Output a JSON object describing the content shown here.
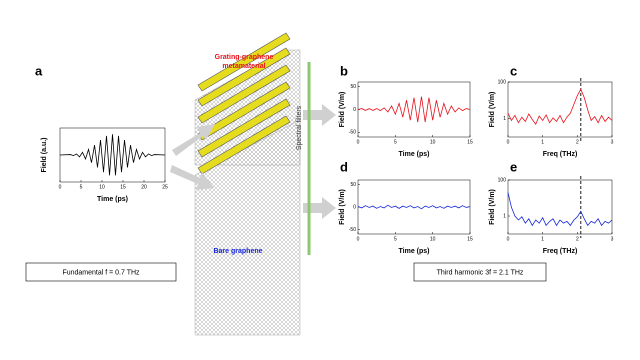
{
  "labels": {
    "grating": [
      "Grating-graphene",
      "metamaterial"
    ],
    "bare": "Bare graphene",
    "filters": "Spectral filters",
    "fundamental": "Fundamental f = 0.7 THz",
    "harmonic": "Third harmonic 3f = 2.1 THz"
  },
  "chart_data": [
    {
      "type": "line",
      "panel": "a",
      "xlabel": "Time (ps)",
      "ylabel": "Field (a.u.)",
      "color": "#000000",
      "x": [
        0,
        2.5,
        3.22,
        3.93,
        4.65,
        5.36,
        6.07,
        6.79,
        7.5,
        8.22,
        8.93,
        9.64,
        10.36,
        11.07,
        11.79,
        12.5,
        13.21,
        13.93,
        14.64,
        15.36,
        16.07,
        16.79,
        17.5,
        18.21,
        18.93,
        19.64,
        20.36,
        21.07,
        21.79,
        22.5,
        25
      ],
      "values": [
        0,
        0.02,
        -0.03,
        0.05,
        -0.09,
        0.13,
        -0.19,
        0.27,
        -0.37,
        0.48,
        -0.6,
        0.72,
        -0.83,
        0.92,
        -0.98,
        1,
        -0.98,
        0.92,
        -0.83,
        0.72,
        -0.6,
        0.48,
        -0.37,
        0.27,
        -0.19,
        0.13,
        -0.09,
        0.05,
        -0.03,
        0.02,
        0
      ],
      "xlim": [
        0,
        25
      ],
      "ylim": [
        -1.3,
        1.3
      ],
      "xticks": [
        0,
        5,
        10,
        15,
        20,
        25
      ],
      "yticks": []
    },
    {
      "type": "line",
      "panel": "b",
      "xlabel": "Time (ps)",
      "ylabel": "Field (V/m)",
      "color": "#e8101a",
      "x": [
        0,
        0.5,
        1,
        1.5,
        2,
        2.5,
        3,
        3.5,
        4,
        4.5,
        5,
        5.5,
        6,
        6.5,
        7,
        7.5,
        8,
        8.5,
        9,
        9.5,
        10,
        10.5,
        11,
        11.5,
        12,
        12.5,
        13,
        13.5,
        14,
        14.5,
        15
      ],
      "values": [
        0,
        2,
        -2,
        2,
        -2,
        2,
        -2.4,
        3.6,
        -5.4,
        7.6,
        -10.3,
        13.4,
        -16.8,
        20.2,
        -23.3,
        25.8,
        -27.4,
        28,
        -27.4,
        25.8,
        -23.3,
        20.2,
        -16.8,
        13.4,
        -10.3,
        7.6,
        -5.4,
        3.6,
        -2.4,
        2,
        0
      ],
      "xlim": [
        0,
        15
      ],
      "ylim": [
        -60,
        60
      ],
      "xticks": [
        0,
        5,
        10,
        15
      ],
      "yticks": [
        50,
        0,
        -50
      ]
    },
    {
      "type": "line",
      "panel": "c",
      "xlabel": "Freq (THz)",
      "ylabel": "Field (V/m)",
      "color": "#e8101a",
      "yscale": "log",
      "vline": 2.1,
      "x": [
        0,
        0.1,
        0.2,
        0.3,
        0.4,
        0.5,
        0.6,
        0.7,
        0.8,
        0.9,
        1,
        1.1,
        1.2,
        1.3,
        1.4,
        1.5,
        1.6,
        1.7,
        1.8,
        1.9,
        2,
        2.1,
        2.2,
        2.3,
        2.4,
        2.5,
        2.6,
        2.7,
        2.8,
        2.9,
        3
      ],
      "values": [
        2,
        0.8,
        1.5,
        0.6,
        1.2,
        0.7,
        1.8,
        0.9,
        0.5,
        1.4,
        0.8,
        1.6,
        0.6,
        1.1,
        0.7,
        1.5,
        0.6,
        1.2,
        2,
        6,
        18,
        40,
        14,
        3,
        0.8,
        1.3,
        0.6,
        1.5,
        0.7,
        1.2,
        0.8
      ],
      "xlim": [
        0,
        3
      ],
      "ylim": [
        0.1,
        100
      ],
      "xticks": [
        0,
        1,
        2,
        3
      ],
      "yticks": [
        100,
        1
      ]
    },
    {
      "type": "line",
      "panel": "d",
      "xlabel": "Time (ps)",
      "ylabel": "Field (V/m)",
      "color": "#1426d8",
      "x": [
        0,
        0.5,
        1,
        1.5,
        2,
        2.5,
        3,
        3.5,
        4,
        4.5,
        5,
        5.5,
        6,
        6.5,
        7,
        7.5,
        8,
        8.5,
        9,
        9.5,
        10,
        10.5,
        11,
        11.5,
        12,
        12.5,
        13,
        13.5,
        14,
        14.5,
        15
      ],
      "values": [
        1,
        -2,
        3,
        -1,
        2,
        -3,
        1,
        -2,
        4,
        -1,
        2,
        -3,
        2,
        -1,
        3,
        -2,
        1,
        -4,
        2,
        -1,
        3,
        -2,
        1,
        -3,
        2,
        -1,
        2,
        -2,
        3,
        -1,
        1
      ],
      "xlim": [
        0,
        15
      ],
      "ylim": [
        -60,
        60
      ],
      "xticks": [
        0,
        5,
        10,
        15
      ],
      "yticks": [
        50,
        0,
        -50
      ]
    },
    {
      "type": "line",
      "panel": "e",
      "xlabel": "Freq (THz)",
      "ylabel": "Field (V/m)",
      "color": "#1426d8",
      "yscale": "log",
      "vline": 2.1,
      "x": [
        0,
        0.1,
        0.2,
        0.3,
        0.4,
        0.5,
        0.6,
        0.7,
        0.8,
        0.9,
        1,
        1.1,
        1.2,
        1.3,
        1.4,
        1.5,
        1.6,
        1.7,
        1.8,
        1.9,
        2,
        2.1,
        2.2,
        2.3,
        2.4,
        2.5,
        2.6,
        2.7,
        2.8,
        2.9,
        3
      ],
      "values": [
        20,
        3,
        1,
        0.6,
        0.9,
        0.4,
        0.7,
        0.3,
        0.6,
        0.4,
        0.8,
        0.3,
        0.5,
        0.7,
        0.3,
        0.6,
        0.4,
        0.5,
        0.3,
        0.6,
        0.9,
        1.8,
        0.7,
        0.3,
        0.5,
        0.4,
        0.7,
        0.3,
        0.5,
        0.4,
        0.6
      ],
      "xlim": [
        0,
        3
      ],
      "ylim": [
        0.1,
        100
      ],
      "xticks": [
        0,
        1,
        2,
        3
      ],
      "yticks": [
        100,
        1
      ]
    }
  ]
}
